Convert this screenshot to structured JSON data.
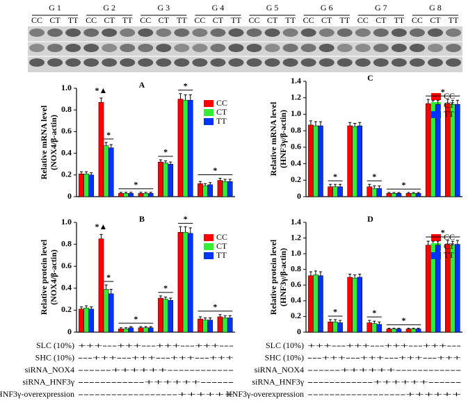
{
  "blot": {
    "groups": [
      "G 1",
      "G 2",
      "G 3",
      "G 4",
      "G 5",
      "G 6",
      "G 7",
      "G 8"
    ],
    "lanes": [
      [
        "CC",
        "CT",
        "TT"
      ],
      [
        "CC",
        "CT",
        "TT"
      ],
      [
        "CC",
        "CT",
        "TT"
      ],
      [
        "CC",
        "CT",
        "TT"
      ],
      [
        "CC",
        "CT",
        "TT"
      ],
      [
        "CC",
        "CT",
        "TT"
      ],
      [
        "CC",
        "CT",
        "TT"
      ],
      [
        "CC",
        "CT",
        "TT"
      ]
    ]
  },
  "chart_data": [
    {
      "type": "bar",
      "title": "A",
      "ylabel": [
        "Relative mRNA level",
        "(NOX4/β-actin)"
      ],
      "categories": [
        null,
        null,
        null,
        null,
        null,
        null,
        null,
        null
      ],
      "series": [
        {
          "name": "CC",
          "color": "#ff0000",
          "values": [
            0.21,
            0.87,
            0.03,
            0.03,
            0.32,
            0.9,
            0.12,
            0.15
          ],
          "errors": [
            0.02,
            0.04,
            0.01,
            0.01,
            0.02,
            0.05,
            0.02,
            0.02
          ]
        },
        {
          "name": "CT",
          "color": "#33ee33",
          "values": [
            0.21,
            0.47,
            0.03,
            0.03,
            0.31,
            0.89,
            0.1,
            0.14
          ],
          "errors": [
            0.02,
            0.03,
            0.01,
            0.01,
            0.02,
            0.05,
            0.02,
            0.02
          ]
        },
        {
          "name": "TT",
          "color": "#0033ff",
          "values": [
            0.2,
            0.45,
            0.03,
            0.03,
            0.3,
            0.89,
            0.11,
            0.14
          ],
          "errors": [
            0.02,
            0.03,
            0.01,
            0.01,
            0.02,
            0.05,
            0.02,
            0.02
          ]
        }
      ],
      "ylim": [
        0,
        1
      ],
      "yticks": [
        0,
        0.2,
        0.4,
        0.6,
        0.8,
        {
          "value": 1,
          "label": "1.0"
        }
      ],
      "annotations": [
        {
          "text": "*▲",
          "bars": [
            [
              1,
              0
            ],
            [
              1,
              0
            ]
          ]
        },
        {
          "text": "*",
          "bars": [
            [
              1,
              1
            ],
            [
              1,
              2
            ]
          ]
        },
        {
          "text": "*",
          "bars": [
            [
              2,
              0
            ],
            [
              3,
              2
            ]
          ]
        },
        {
          "text": "*",
          "bars": [
            [
              4,
              0
            ],
            [
              4,
              2
            ]
          ]
        },
        {
          "text": "*",
          "bars": [
            [
              5,
              0
            ],
            [
              5,
              2
            ]
          ]
        },
        {
          "text": "*",
          "bars": [
            [
              6,
              0
            ],
            [
              7,
              2
            ]
          ]
        }
      ]
    },
    {
      "type": "bar",
      "title": "B",
      "ylabel": [
        "Relative protein level",
        "(NOX4/β-actin)"
      ],
      "categories": [
        null,
        null,
        null,
        null,
        null,
        null,
        null,
        null
      ],
      "series": [
        {
          "name": "CC",
          "color": "#ff0000",
          "values": [
            0.21,
            0.85,
            0.03,
            0.04,
            0.31,
            0.91,
            0.12,
            0.14
          ],
          "errors": [
            0.02,
            0.04,
            0.01,
            0.01,
            0.02,
            0.05,
            0.02,
            0.02
          ]
        },
        {
          "name": "CT",
          "color": "#33ee33",
          "values": [
            0.22,
            0.39,
            0.03,
            0.04,
            0.3,
            0.91,
            0.11,
            0.13
          ],
          "errors": [
            0.02,
            0.04,
            0.01,
            0.01,
            0.02,
            0.05,
            0.02,
            0.02
          ]
        },
        {
          "name": "TT",
          "color": "#0033ff",
          "values": [
            0.21,
            0.35,
            0.04,
            0.04,
            0.29,
            0.9,
            0.11,
            0.13
          ],
          "errors": [
            0.02,
            0.04,
            0.01,
            0.01,
            0.02,
            0.05,
            0.02,
            0.02
          ]
        }
      ],
      "ylim": [
        0,
        1
      ],
      "yticks": [
        0,
        0.2,
        0.4,
        0.6,
        0.8,
        {
          "value": 1,
          "label": "1.0"
        }
      ],
      "annotations": [
        {
          "text": "*▲",
          "bars": [
            [
              1,
              0
            ],
            [
              1,
              0
            ]
          ]
        },
        {
          "text": "*",
          "bars": [
            [
              1,
              1
            ],
            [
              1,
              2
            ]
          ]
        },
        {
          "text": "*",
          "bars": [
            [
              2,
              0
            ],
            [
              3,
              2
            ]
          ]
        },
        {
          "text": "*",
          "bars": [
            [
              4,
              0
            ],
            [
              4,
              2
            ]
          ]
        },
        {
          "text": "*",
          "bars": [
            [
              5,
              0
            ],
            [
              5,
              2
            ]
          ]
        },
        {
          "text": "*",
          "bars": [
            [
              6,
              0
            ],
            [
              7,
              2
            ]
          ]
        }
      ]
    },
    {
      "type": "bar",
      "title": "C",
      "ylabel": [
        "Relative mRNA level",
        "(HNF3γ/β-actin)"
      ],
      "categories": [
        null,
        null,
        null,
        null,
        null,
        null,
        null,
        null
      ],
      "series": [
        {
          "name": "CC",
          "color": "#ff0000",
          "values": [
            0.87,
            0.12,
            0.86,
            0.12,
            0.04,
            0.04,
            1.13,
            1.13
          ],
          "errors": [
            0.05,
            0.03,
            0.04,
            0.03,
            0.01,
            0.01,
            0.05,
            0.05
          ]
        },
        {
          "name": "CT",
          "color": "#33ee33",
          "values": [
            0.86,
            0.12,
            0.85,
            0.1,
            0.04,
            0.04,
            1.12,
            1.12
          ],
          "errors": [
            0.05,
            0.03,
            0.04,
            0.03,
            0.01,
            0.01,
            0.05,
            0.05
          ]
        },
        {
          "name": "TT",
          "color": "#0033ff",
          "values": [
            0.86,
            0.12,
            0.86,
            0.1,
            0.04,
            0.04,
            1.12,
            1.12
          ],
          "errors": [
            0.05,
            0.03,
            0.04,
            0.03,
            0.01,
            0.01,
            0.05,
            0.05
          ]
        }
      ],
      "ylim": [
        0,
        1.4
      ],
      "yticks": [
        0,
        0.2,
        0.4,
        0.6,
        0.8,
        {
          "value": 1,
          "label": "1.0"
        },
        1.2,
        1.4
      ],
      "annotations": [
        {
          "text": "*",
          "bars": [
            [
              1,
              0
            ],
            [
              1,
              2
            ]
          ]
        },
        {
          "text": "*",
          "bars": [
            [
              3,
              0
            ],
            [
              3,
              2
            ]
          ]
        },
        {
          "text": "*",
          "bars": [
            [
              4,
              0
            ],
            [
              5,
              2
            ]
          ]
        },
        {
          "text": "*",
          "bars": [
            [
              6,
              0
            ],
            [
              7,
              2
            ]
          ]
        }
      ]
    },
    {
      "type": "bar",
      "title": "D",
      "ylabel": [
        "Relative protein level",
        "(HNF3γ/β-actin)"
      ],
      "categories": [
        null,
        null,
        null,
        null,
        null,
        null,
        null,
        null
      ],
      "series": [
        {
          "name": "CC",
          "color": "#ff0000",
          "values": [
            0.72,
            0.13,
            0.7,
            0.12,
            0.04,
            0.04,
            1.11,
            1.12
          ],
          "errors": [
            0.05,
            0.03,
            0.04,
            0.03,
            0.01,
            0.01,
            0.05,
            0.05
          ]
        },
        {
          "name": "CT",
          "color": "#33ee33",
          "values": [
            0.73,
            0.13,
            0.69,
            0.11,
            0.04,
            0.04,
            1.11,
            1.11
          ],
          "errors": [
            0.05,
            0.03,
            0.04,
            0.03,
            0.01,
            0.01,
            0.05,
            0.05
          ]
        },
        {
          "name": "TT",
          "color": "#0033ff",
          "values": [
            0.72,
            0.12,
            0.7,
            0.1,
            0.04,
            0.04,
            1.11,
            1.12
          ],
          "errors": [
            0.05,
            0.03,
            0.04,
            0.03,
            0.01,
            0.01,
            0.05,
            0.05
          ]
        }
      ],
      "ylim": [
        0,
        1.4
      ],
      "yticks": [
        0,
        0.2,
        0.4,
        0.6,
        0.8,
        {
          "value": 1,
          "label": "1.0"
        },
        1.2,
        1.4
      ],
      "annotations": [
        {
          "text": "*",
          "bars": [
            [
              1,
              0
            ],
            [
              1,
              2
            ]
          ]
        },
        {
          "text": "*",
          "bars": [
            [
              3,
              0
            ],
            [
              3,
              2
            ]
          ]
        },
        {
          "text": "*",
          "bars": [
            [
              4,
              0
            ],
            [
              5,
              2
            ]
          ]
        },
        {
          "text": "*",
          "bars": [
            [
              6,
              0
            ],
            [
              7,
              2
            ]
          ]
        }
      ]
    }
  ],
  "treatment_tables": [
    {
      "rows": [
        {
          "label": "SLC (10%)",
          "pattern": "+++---+++---+++---+++---"
        },
        {
          "label": "SHC (10%)",
          "pattern": "---+++---+++---+++---+++"
        },
        {
          "label": "siRNA_NOX4",
          "pattern": "------++++++------------"
        },
        {
          "label": "siRNA_HNF3γ",
          "pattern": "------------++++++------"
        },
        {
          "label": "HNF3γ-overexpression",
          "pattern": "------------------++++++"
        }
      ]
    },
    {
      "rows": [
        {
          "label": "SLC (10%)",
          "pattern": "+++---+++---+++---+++---"
        },
        {
          "label": "SHC (10%)",
          "pattern": "---+++---+++---+++---+++"
        },
        {
          "label": "siRNA_NOX4",
          "pattern": "------++++++------------"
        },
        {
          "label": "siRNA_HNF3γ",
          "pattern": "------------++++++------"
        },
        {
          "label": "HNF3γ-overexpression",
          "pattern": "------------------++++++"
        }
      ]
    }
  ]
}
